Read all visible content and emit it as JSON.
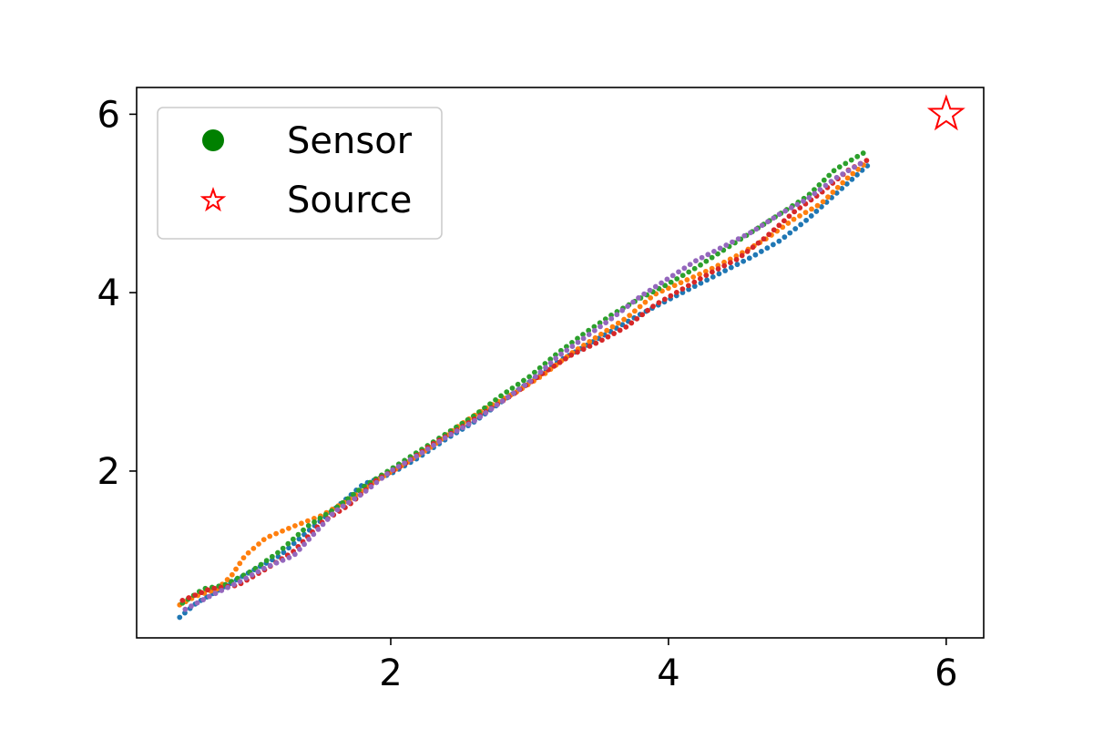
{
  "chart_data": {
    "type": "scatter",
    "title": "",
    "xlabel": "",
    "ylabel": "",
    "xlim": [
      0.17,
      6.27
    ],
    "ylim": [
      0.13,
      6.3
    ],
    "x_ticks": [
      2,
      4,
      6
    ],
    "y_ticks": [
      2,
      4,
      6
    ],
    "x_tick_labels": [
      "2",
      "4",
      "6"
    ],
    "y_tick_labels": [
      "2",
      "4",
      "6"
    ],
    "grid": false,
    "legend": {
      "placement": "top-left",
      "entries": [
        {
          "label": "Sensor",
          "marker": "filled-circle",
          "color": "#008000"
        },
        {
          "label": "Source",
          "marker": "hollow-star",
          "color": "#ff0000"
        }
      ]
    },
    "source": {
      "x": 6.0,
      "y": 6.0,
      "color": "#ff0000"
    },
    "series": [
      {
        "color": "#1f77b4",
        "points": [
          [
            0.48,
            0.36
          ],
          [
            0.6,
            0.52
          ],
          [
            0.8,
            0.7
          ],
          [
            1.0,
            0.88
          ],
          [
            1.2,
            1.05
          ],
          [
            1.4,
            1.32
          ],
          [
            1.6,
            1.58
          ],
          [
            1.8,
            1.85
          ],
          [
            2.0,
            1.97
          ],
          [
            2.2,
            2.15
          ],
          [
            2.4,
            2.36
          ],
          [
            2.6,
            2.55
          ],
          [
            2.8,
            2.78
          ],
          [
            3.0,
            3.0
          ],
          [
            3.2,
            3.22
          ],
          [
            3.4,
            3.4
          ],
          [
            3.6,
            3.58
          ],
          [
            3.8,
            3.76
          ],
          [
            4.0,
            3.92
          ],
          [
            4.2,
            4.08
          ],
          [
            4.4,
            4.24
          ],
          [
            4.6,
            4.4
          ],
          [
            4.8,
            4.58
          ],
          [
            5.0,
            4.82
          ],
          [
            5.2,
            5.1
          ],
          [
            5.4,
            5.38
          ],
          [
            5.47,
            5.47
          ]
        ]
      },
      {
        "color": "#ff7f0e",
        "points": [
          [
            0.48,
            0.5
          ],
          [
            0.6,
            0.6
          ],
          [
            0.75,
            0.68
          ],
          [
            0.85,
            0.82
          ],
          [
            0.95,
            1.05
          ],
          [
            1.1,
            1.25
          ],
          [
            1.3,
            1.38
          ],
          [
            1.5,
            1.5
          ],
          [
            1.7,
            1.68
          ],
          [
            1.9,
            1.9
          ],
          [
            2.1,
            2.08
          ],
          [
            2.3,
            2.28
          ],
          [
            2.5,
            2.52
          ],
          [
            2.7,
            2.72
          ],
          [
            2.9,
            2.88
          ],
          [
            3.1,
            3.08
          ],
          [
            3.3,
            3.32
          ],
          [
            3.5,
            3.52
          ],
          [
            3.7,
            3.72
          ],
          [
            3.9,
            3.98
          ],
          [
            4.1,
            4.12
          ],
          [
            4.3,
            4.26
          ],
          [
            4.5,
            4.42
          ],
          [
            4.7,
            4.6
          ],
          [
            4.9,
            4.82
          ],
          [
            5.1,
            5.0
          ],
          [
            5.3,
            5.3
          ],
          [
            5.42,
            5.45
          ]
        ]
      },
      {
        "color": "#2ca02c",
        "points": [
          [
            0.5,
            0.52
          ],
          [
            0.65,
            0.68
          ],
          [
            0.8,
            0.72
          ],
          [
            1.0,
            0.88
          ],
          [
            1.2,
            1.1
          ],
          [
            1.4,
            1.38
          ],
          [
            1.6,
            1.58
          ],
          [
            1.8,
            1.82
          ],
          [
            2.0,
            2.02
          ],
          [
            2.2,
            2.22
          ],
          [
            2.4,
            2.42
          ],
          [
            2.6,
            2.62
          ],
          [
            2.8,
            2.85
          ],
          [
            3.0,
            3.06
          ],
          [
            3.2,
            3.32
          ],
          [
            3.4,
            3.55
          ],
          [
            3.6,
            3.76
          ],
          [
            3.8,
            3.94
          ],
          [
            4.0,
            4.1
          ],
          [
            4.2,
            4.28
          ],
          [
            4.4,
            4.48
          ],
          [
            4.6,
            4.68
          ],
          [
            4.8,
            4.88
          ],
          [
            5.0,
            5.08
          ],
          [
            5.2,
            5.38
          ],
          [
            5.42,
            5.58
          ]
        ]
      },
      {
        "color": "#d62728",
        "points": [
          [
            0.5,
            0.55
          ],
          [
            0.7,
            0.68
          ],
          [
            0.9,
            0.72
          ],
          [
            1.1,
            0.9
          ],
          [
            1.3,
            1.1
          ],
          [
            1.5,
            1.42
          ],
          [
            1.7,
            1.62
          ],
          [
            1.9,
            1.9
          ],
          [
            2.1,
            2.08
          ],
          [
            2.3,
            2.3
          ],
          [
            2.5,
            2.48
          ],
          [
            2.7,
            2.68
          ],
          [
            2.9,
            2.88
          ],
          [
            3.1,
            3.1
          ],
          [
            3.3,
            3.3
          ],
          [
            3.5,
            3.45
          ],
          [
            3.7,
            3.62
          ],
          [
            3.9,
            3.86
          ],
          [
            4.1,
            4.04
          ],
          [
            4.3,
            4.22
          ],
          [
            4.5,
            4.38
          ],
          [
            4.7,
            4.62
          ],
          [
            4.9,
            4.9
          ],
          [
            5.1,
            5.12
          ],
          [
            5.3,
            5.38
          ],
          [
            5.45,
            5.5
          ]
        ]
      },
      {
        "color": "#9467bd",
        "points": [
          [
            0.52,
            0.45
          ],
          [
            0.7,
            0.6
          ],
          [
            0.9,
            0.75
          ],
          [
            1.1,
            0.92
          ],
          [
            1.3,
            1.05
          ],
          [
            1.45,
            1.3
          ],
          [
            1.6,
            1.55
          ],
          [
            1.8,
            1.75
          ],
          [
            2.0,
            2.0
          ],
          [
            2.2,
            2.18
          ],
          [
            2.4,
            2.38
          ],
          [
            2.6,
            2.56
          ],
          [
            2.8,
            2.78
          ],
          [
            3.0,
            3.0
          ],
          [
            3.2,
            3.28
          ],
          [
            3.4,
            3.5
          ],
          [
            3.6,
            3.72
          ],
          [
            3.8,
            3.96
          ],
          [
            4.0,
            4.16
          ],
          [
            4.2,
            4.36
          ],
          [
            4.4,
            4.52
          ],
          [
            4.6,
            4.68
          ],
          [
            4.8,
            4.88
          ],
          [
            5.0,
            5.05
          ],
          [
            5.2,
            5.28
          ],
          [
            5.42,
            5.48
          ]
        ]
      }
    ]
  }
}
